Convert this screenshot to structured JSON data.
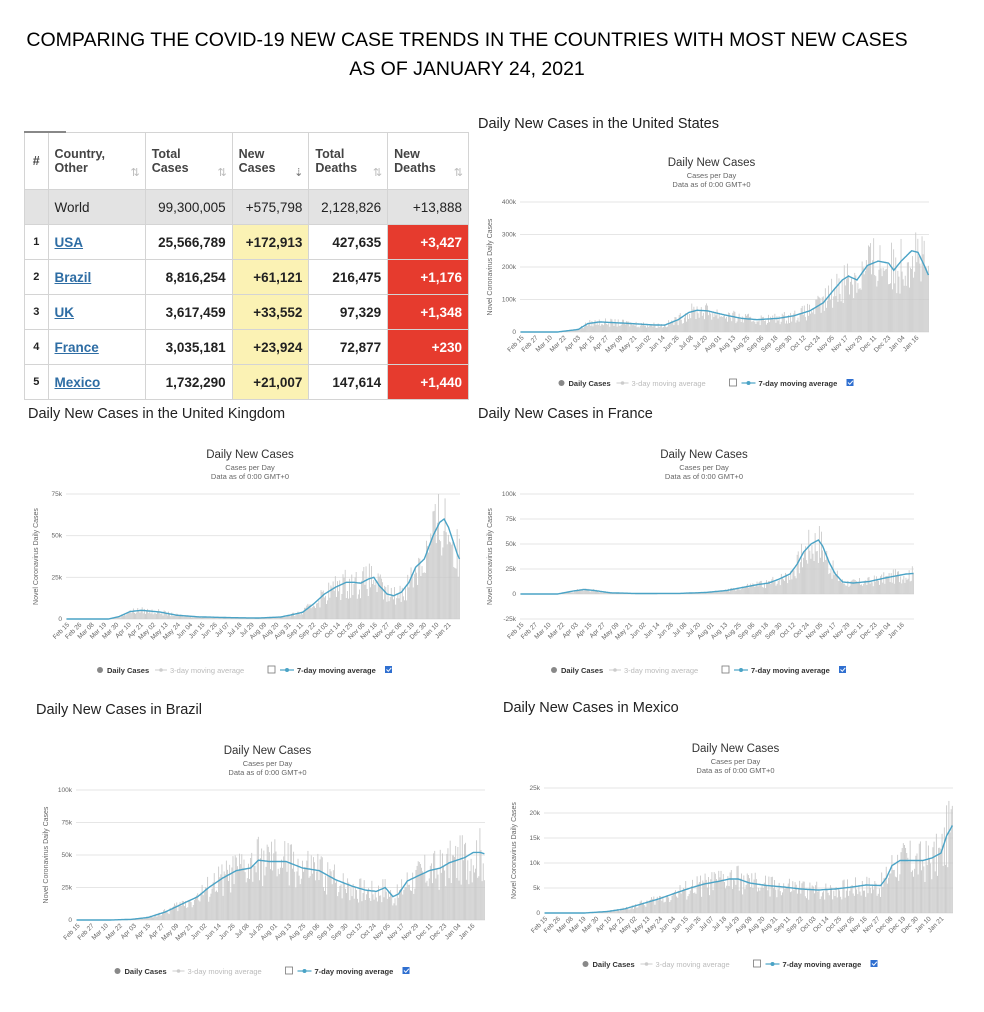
{
  "main_title": {
    "line1": "COMPARING THE COVID-19 NEW CASE TRENDS IN THE COUNTRIES WITH MOST NEW CASES",
    "line2": "AS OF JANUARY 24, 2021"
  },
  "table": {
    "headers": [
      "#",
      "Country, Other",
      "Total Cases",
      "New Cases",
      "Total Deaths",
      "New Deaths"
    ],
    "world": {
      "country": "World",
      "total_cases": "99,300,005",
      "new_cases": "+575,798",
      "total_deaths": "2,128,826",
      "new_deaths": "+13,888"
    },
    "rows": [
      {
        "rank": "1",
        "country": "USA",
        "total_cases": "25,566,789",
        "new_cases": "+172,913",
        "total_deaths": "427,635",
        "new_deaths": "+3,427"
      },
      {
        "rank": "2",
        "country": "Brazil",
        "total_cases": "8,816,254",
        "new_cases": "+61,121",
        "total_deaths": "216,475",
        "new_deaths": "+1,176"
      },
      {
        "rank": "3",
        "country": "UK",
        "total_cases": "3,617,459",
        "new_cases": "+33,552",
        "total_deaths": "97,329",
        "new_deaths": "+1,348"
      },
      {
        "rank": "4",
        "country": "France",
        "total_cases": "3,035,181",
        "new_cases": "+23,924",
        "total_deaths": "72,877",
        "new_deaths": "+230"
      },
      {
        "rank": "5",
        "country": "Mexico",
        "total_cases": "1,732,290",
        "new_cases": "+21,007",
        "total_deaths": "147,614",
        "new_deaths": "+1,440"
      }
    ]
  },
  "sections": {
    "us": "Daily New Cases in the United States",
    "uk": "Daily New Cases in the United Kingdom",
    "france": "Daily New Cases in France",
    "brazil": "Daily New Cases in Brazil",
    "mexico": "Daily New Cases in Mexico"
  },
  "colors": {
    "bar": "#c8c8c8",
    "line": "#4aa3c6",
    "new_cases_bg": "#fbf2b4",
    "new_deaths_bg": "#e63b2e",
    "link": "#2e6da4"
  },
  "chart_data": [
    {
      "id": "us",
      "type": "bar",
      "title": "Daily New Cases",
      "subtitle": "Cases per Day",
      "subtitle2": "Data as of 0:00 GMT+0",
      "ylabel": "Novel Coronavirus Daily Cases",
      "xlabel": "",
      "ylim": [
        0,
        400000
      ],
      "yticks": [
        {
          "v": 0,
          "l": "0"
        },
        {
          "v": 100000,
          "l": "100k"
        },
        {
          "v": 200000,
          "l": "200k"
        },
        {
          "v": 300000,
          "l": "300k"
        },
        {
          "v": 400000,
          "l": "400k"
        }
      ],
      "x_labels": [
        "Feb 15",
        "Feb 27",
        "Mar 10",
        "Mar 22",
        "Apr 03",
        "Apr 15",
        "Apr 27",
        "May 09",
        "May 21",
        "Jun 02",
        "Jun 14",
        "Jun 26",
        "Jul 08",
        "Jul 20",
        "Aug 01",
        "Aug 13",
        "Aug 25",
        "Sep 06",
        "Sep 18",
        "Sep 30",
        "Oct 12",
        "Oct 24",
        "Nov 05",
        "Nov 17",
        "Nov 29",
        "Dec 11",
        "Dec 23",
        "Jan 04",
        "Jan 16"
      ],
      "series": [
        {
          "name": "7-day moving average",
          "knots": [
            [
              0,
              0
            ],
            [
              35,
              0
            ],
            [
              55,
              8000
            ],
            [
              64,
              26000
            ],
            [
              75,
              31000
            ],
            [
              100,
              27000
            ],
            [
              125,
              22000
            ],
            [
              137,
              21000
            ],
            [
              150,
              38000
            ],
            [
              160,
              60000
            ],
            [
              168,
              67000
            ],
            [
              178,
              65000
            ],
            [
              195,
              52000
            ],
            [
              210,
              42000
            ],
            [
              225,
              38000
            ],
            [
              245,
              42000
            ],
            [
              260,
              50000
            ],
            [
              275,
              65000
            ],
            [
              288,
              90000
            ],
            [
              298,
              130000
            ],
            [
              306,
              160000
            ],
            [
              312,
              172000
            ],
            [
              320,
              160000
            ],
            [
              330,
              205000
            ],
            [
              340,
              218000
            ],
            [
              350,
              212000
            ],
            [
              355,
              190000
            ],
            [
              362,
              218000
            ],
            [
              372,
              250000
            ],
            [
              378,
              245000
            ],
            [
              384,
              205000
            ],
            [
              388,
              175000
            ]
          ]
        }
      ],
      "legend": [
        "Daily Cases",
        "3-day moving average",
        "7-day moving average"
      ]
    },
    {
      "id": "uk",
      "type": "bar",
      "title": "Daily New Cases",
      "subtitle": "Cases per Day",
      "subtitle2": "Data as of 0:00 GMT+0",
      "ylabel": "Novel Coronavirus Daily Cases",
      "xlabel": "",
      "ylim": [
        0,
        75000
      ],
      "yticks": [
        {
          "v": 0,
          "l": "0"
        },
        {
          "v": 25000,
          "l": "25k"
        },
        {
          "v": 50000,
          "l": "50k"
        },
        {
          "v": 75000,
          "l": "75k"
        }
      ],
      "x_labels": [
        "Feb 15",
        "Feb 26",
        "Mar 08",
        "Mar 19",
        "Mar 30",
        "Apr 10",
        "Apr 21",
        "May 02",
        "May 13",
        "May 24",
        "Jun 04",
        "Jun 15",
        "Jun 26",
        "Jul 07",
        "Jul 18",
        "Jul 29",
        "Aug 09",
        "Aug 20",
        "Aug 31",
        "Sep 11",
        "Sep 22",
        "Oct 03",
        "Oct 14",
        "Oct 25",
        "Nov 05",
        "Nov 16",
        "Nov 27",
        "Dec 08",
        "Dec 19",
        "Dec 30",
        "Jan 10",
        "Jan 21"
      ],
      "series": [
        {
          "name": "7-day moving average",
          "knots": [
            [
              0,
              0
            ],
            [
              38,
              0
            ],
            [
              48,
              1500
            ],
            [
              58,
              4500
            ],
            [
              68,
              5200
            ],
            [
              85,
              4200
            ],
            [
              100,
              2300
            ],
            [
              120,
              1300
            ],
            [
              150,
              800
            ],
            [
              175,
              600
            ],
            [
              195,
              1200
            ],
            [
              205,
              2500
            ],
            [
              215,
              4000
            ],
            [
              225,
              9000
            ],
            [
              235,
              15000
            ],
            [
              245,
              19000
            ],
            [
              255,
              22000
            ],
            [
              262,
              22000
            ],
            [
              268,
              21500
            ],
            [
              275,
              24000
            ],
            [
              280,
              25000
            ],
            [
              285,
              20000
            ],
            [
              292,
              15000
            ],
            [
              298,
              14000
            ],
            [
              305,
              16000
            ],
            [
              312,
              22000
            ],
            [
              318,
              31000
            ],
            [
              326,
              36000
            ],
            [
              334,
              50000
            ],
            [
              340,
              58000
            ],
            [
              344,
              60000
            ],
            [
              348,
              55000
            ],
            [
              352,
              47000
            ],
            [
              356,
              39000
            ],
            [
              358,
              36000
            ]
          ]
        }
      ],
      "legend": [
        "Daily Cases",
        "3-day moving average",
        "7-day moving average"
      ]
    },
    {
      "id": "france",
      "type": "bar",
      "title": "Daily New Cases",
      "subtitle": "Cases per Day",
      "subtitle2": "Data as of 0:00 GMT+0",
      "ylabel": "Novel Coronavirus Daily Cases",
      "xlabel": "",
      "ylim": [
        -25000,
        100000
      ],
      "yticks": [
        {
          "v": -25000,
          "l": "-25k"
        },
        {
          "v": 0,
          "l": "0"
        },
        {
          "v": 25000,
          "l": "25k"
        },
        {
          "v": 50000,
          "l": "50k"
        },
        {
          "v": 75000,
          "l": "75k"
        },
        {
          "v": 100000,
          "l": "100k"
        }
      ],
      "x_labels": [
        "Feb 15",
        "Feb 27",
        "Mar 10",
        "Mar 22",
        "Apr 03",
        "Apr 15",
        "Apr 27",
        "May 09",
        "May 21",
        "Jun 02",
        "Jun 14",
        "Jun 26",
        "Jul 08",
        "Jul 20",
        "Aug 01",
        "Aug 13",
        "Aug 25",
        "Sep 06",
        "Sep 18",
        "Sep 30",
        "Oct 12",
        "Oct 24",
        "Nov 05",
        "Nov 17",
        "Nov 29",
        "Dec 11",
        "Dec 23",
        "Jan 04",
        "Jan 16"
      ],
      "series": [
        {
          "name": "7-day moving average",
          "knots": [
            [
              0,
              0
            ],
            [
              35,
              0
            ],
            [
              50,
              3000
            ],
            [
              60,
              4500
            ],
            [
              70,
              3500
            ],
            [
              85,
              1200
            ],
            [
              110,
              500
            ],
            [
              150,
              600
            ],
            [
              175,
              1500
            ],
            [
              195,
              3500
            ],
            [
              210,
              6500
            ],
            [
              225,
              9500
            ],
            [
              235,
              11000
            ],
            [
              245,
              15000
            ],
            [
              255,
              20000
            ],
            [
              262,
              30000
            ],
            [
              268,
              42000
            ],
            [
              275,
              50000
            ],
            [
              282,
              54000
            ],
            [
              286,
              48000
            ],
            [
              292,
              32000
            ],
            [
              298,
              20000
            ],
            [
              305,
              12000
            ],
            [
              315,
              11000
            ],
            [
              330,
              12500
            ],
            [
              345,
              16000
            ],
            [
              355,
              18000
            ],
            [
              365,
              20000
            ],
            [
              372,
              20500
            ]
          ]
        }
      ],
      "legend": [
        "Daily Cases",
        "3-day moving average",
        "7-day moving average"
      ]
    },
    {
      "id": "brazil",
      "type": "bar",
      "title": "Daily New Cases",
      "subtitle": "Cases per Day",
      "subtitle2": "Data as of 0:00 GMT+0",
      "ylabel": "Novel Coronavirus Daily Cases",
      "xlabel": "",
      "ylim": [
        0,
        100000
      ],
      "yticks": [
        {
          "v": 0,
          "l": "0"
        },
        {
          "v": 25000,
          "l": "25k"
        },
        {
          "v": 50000,
          "l": "50k"
        },
        {
          "v": 75000,
          "l": "75k"
        },
        {
          "v": 100000,
          "l": "100k"
        }
      ],
      "x_labels": [
        "Feb 15",
        "Feb 27",
        "Mar 10",
        "Mar 22",
        "Apr 03",
        "Apr 15",
        "Apr 27",
        "May 09",
        "May 21",
        "Jun 02",
        "Jun 14",
        "Jun 26",
        "Jul 08",
        "Jul 20",
        "Aug 01",
        "Aug 13",
        "Aug 25",
        "Sep 06",
        "Sep 18",
        "Sep 30",
        "Oct 12",
        "Oct 24",
        "Nov 05",
        "Nov 17",
        "Nov 29",
        "Dec 11",
        "Dec 23",
        "Jan 04",
        "Jan 16"
      ],
      "series": [
        {
          "name": "7-day moving average",
          "knots": [
            [
              0,
              0
            ],
            [
              30,
              0
            ],
            [
              50,
              500
            ],
            [
              65,
              2000
            ],
            [
              80,
              6000
            ],
            [
              95,
              12000
            ],
            [
              110,
              18000
            ],
            [
              120,
              25000
            ],
            [
              132,
              32000
            ],
            [
              145,
              38000
            ],
            [
              158,
              40000
            ],
            [
              165,
              46000
            ],
            [
              175,
              45000
            ],
            [
              190,
              45000
            ],
            [
              205,
              40000
            ],
            [
              220,
              38000
            ],
            [
              235,
              31000
            ],
            [
              250,
              26000
            ],
            [
              262,
              23000
            ],
            [
              272,
              22000
            ],
            [
              280,
              25000
            ],
            [
              287,
              18000
            ],
            [
              292,
              20000
            ],
            [
              300,
              30000
            ],
            [
              310,
              34000
            ],
            [
              320,
              38000
            ],
            [
              330,
              40000
            ],
            [
              338,
              44000
            ],
            [
              345,
              46000
            ],
            [
              352,
              48000
            ],
            [
              360,
              52000
            ],
            [
              366,
              52000
            ],
            [
              370,
              51000
            ]
          ]
        }
      ],
      "legend": [
        "Daily Cases",
        "3-day moving average",
        "7-day moving average"
      ]
    },
    {
      "id": "mexico",
      "type": "bar",
      "title": "Daily New Cases",
      "subtitle": "Cases per Day",
      "subtitle2": "Data as of 0:00 GMT+0",
      "ylabel": "Novel Coronavirus Daily Cases",
      "xlabel": "",
      "ylim": [
        0,
        25000
      ],
      "yticks": [
        {
          "v": 0,
          "l": "0"
        },
        {
          "v": 5000,
          "l": "5k"
        },
        {
          "v": 10000,
          "l": "10k"
        },
        {
          "v": 15000,
          "l": "15k"
        },
        {
          "v": 20000,
          "l": "20k"
        },
        {
          "v": 25000,
          "l": "25k"
        }
      ],
      "x_labels": [
        "Feb 15",
        "Feb 26",
        "Mar 08",
        "Mar 19",
        "Mar 30",
        "Apr 10",
        "Apr 21",
        "May 02",
        "May 13",
        "May 24",
        "Jun 04",
        "Jun 15",
        "Jun 26",
        "Jul 07",
        "Jul 18",
        "Jul 29",
        "Aug 09",
        "Aug 20",
        "Aug 31",
        "Sep 11",
        "Sep 22",
        "Oct 03",
        "Oct 14",
        "Oct 25",
        "Nov 05",
        "Nov 16",
        "Nov 27",
        "Dec 08",
        "Dec 19",
        "Dec 30",
        "Jan 10",
        "Jan 21"
      ],
      "series": [
        {
          "name": "7-day moving average",
          "knots": [
            [
              0,
              0
            ],
            [
              35,
              0
            ],
            [
              55,
              300
            ],
            [
              70,
              800
            ],
            [
              85,
              1800
            ],
            [
              100,
              2800
            ],
            [
              115,
              4000
            ],
            [
              128,
              5000
            ],
            [
              140,
              5800
            ],
            [
              152,
              6300
            ],
            [
              162,
              6800
            ],
            [
              170,
              6800
            ],
            [
              180,
              6000
            ],
            [
              195,
              5500
            ],
            [
              210,
              5200
            ],
            [
              225,
              4800
            ],
            [
              240,
              4600
            ],
            [
              255,
              4800
            ],
            [
              270,
              5200
            ],
            [
              282,
              5600
            ],
            [
              295,
              5500
            ],
            [
              300,
              7000
            ],
            [
              305,
              9500
            ],
            [
              312,
              10500
            ],
            [
              322,
              10500
            ],
            [
              332,
              10500
            ],
            [
              340,
              11000
            ],
            [
              348,
              12000
            ],
            [
              353,
              15500
            ],
            [
              358,
              17500
            ]
          ]
        }
      ],
      "legend": [
        "Daily Cases",
        "3-day moving average",
        "7-day moving average"
      ]
    }
  ]
}
